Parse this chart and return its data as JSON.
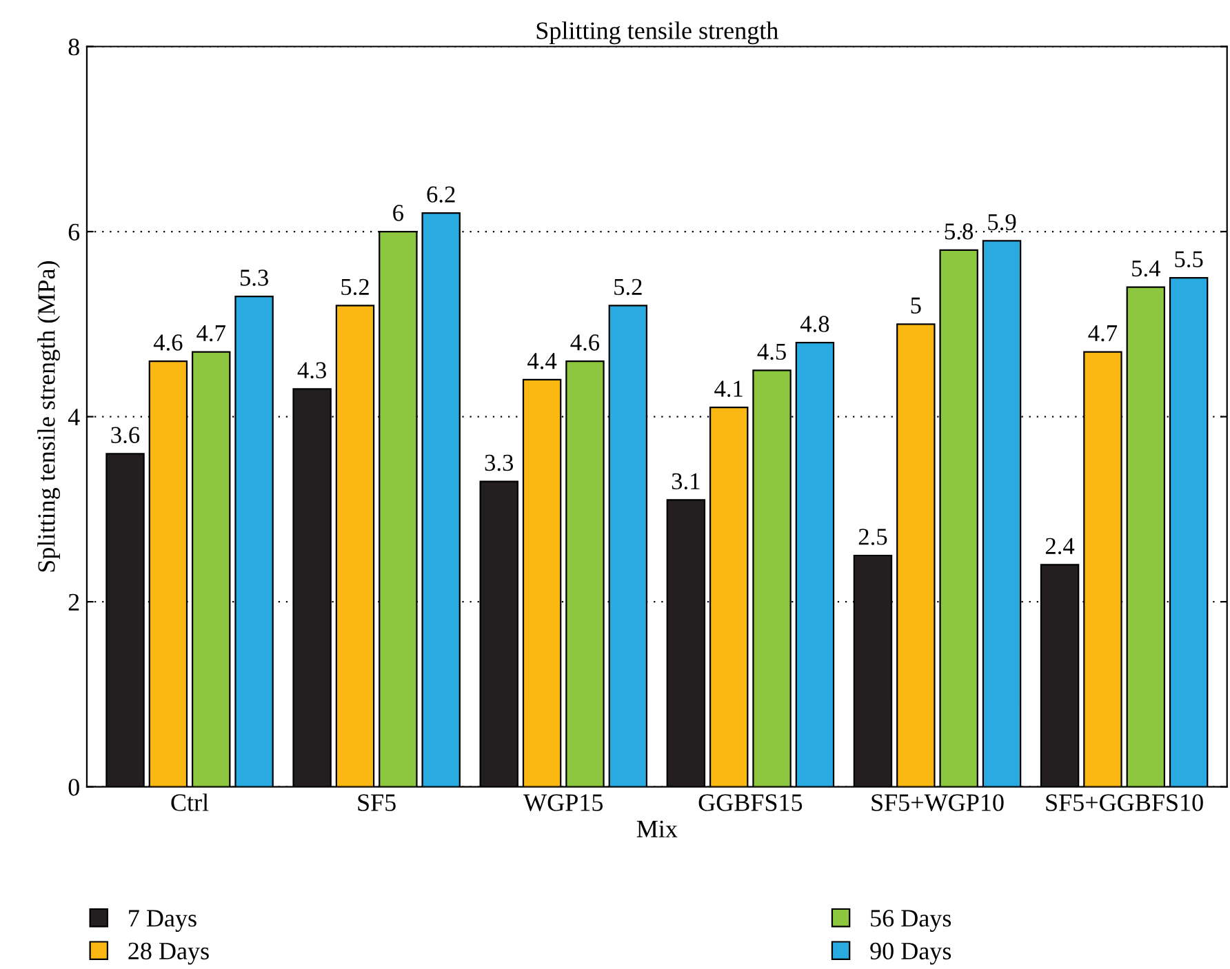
{
  "chart_data": {
    "type": "bar",
    "title": "Splitting tensile strength",
    "xlabel": "Mix",
    "ylabel": "Splitting tensile strength (MPa)",
    "categories": [
      "Ctrl",
      "SF5",
      "WGP15",
      "GGBFS15",
      "SF5+WGP10",
      "SF5+GGBFS10"
    ],
    "series": [
      {
        "name": "7 Days",
        "color": "#231f20",
        "values": [
          3.6,
          4.3,
          3.3,
          3.1,
          2.5,
          2.4
        ]
      },
      {
        "name": "28 Days",
        "color": "#fbb813",
        "values": [
          4.6,
          5.2,
          4.4,
          4.1,
          5,
          4.7
        ]
      },
      {
        "name": "56 Days",
        "color": "#8dc63f",
        "values": [
          4.7,
          6,
          4.6,
          4.5,
          5.8,
          5.4
        ]
      },
      {
        "name": "90 Days",
        "color": "#29abe2",
        "values": [
          5.3,
          6.2,
          5.2,
          4.8,
          5.9,
          5.5
        ]
      }
    ],
    "ylim": [
      0,
      8
    ],
    "yticks": [
      0,
      2,
      4,
      6,
      8
    ],
    "grid": "y",
    "legend": "bottom",
    "data_labels": true
  }
}
